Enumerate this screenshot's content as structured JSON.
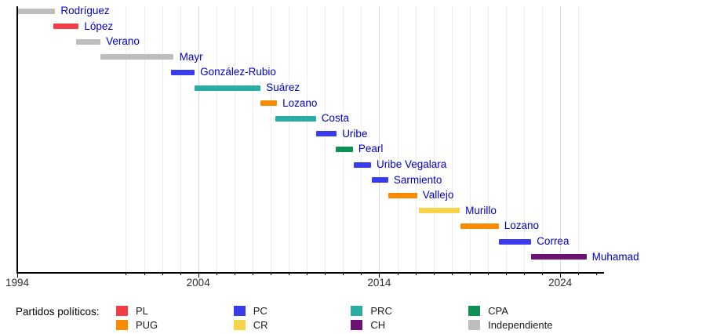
{
  "chart_data": {
    "type": "gantt",
    "title": "",
    "xlabel": "",
    "ylabel": "",
    "x_axis": {
      "start": 1994,
      "end": 2026.6,
      "labeled_ticks": [
        1994,
        2004,
        2014,
        2024
      ],
      "minor_tick_start": 2000,
      "minor_tick_end": 2026,
      "gridline_start": 2000,
      "gridline_end": 2025,
      "grid": "vertical yearly, light gray, decades darker"
    },
    "bars": [
      {
        "name": "Rodríguez",
        "party": "Independiente",
        "start": 1994.0,
        "end": 1996.1
      },
      {
        "name": "López",
        "party": "PL",
        "start": 1996.0,
        "end": 1997.4
      },
      {
        "name": "Verano",
        "party": "Independiente",
        "start": 1997.25,
        "end": 1998.6
      },
      {
        "name": "Mayr",
        "party": "Independiente",
        "start": 1998.6,
        "end": 2002.65
      },
      {
        "name": "González-Rubio",
        "party": "PC",
        "start": 2002.5,
        "end": 2003.8
      },
      {
        "name": "Suárez",
        "party": "PRC",
        "start": 2003.8,
        "end": 2007.45
      },
      {
        "name": "Lozano",
        "party": "PUG",
        "start": 2007.45,
        "end": 2008.35
      },
      {
        "name": "Costa",
        "party": "PRC",
        "start": 2008.25,
        "end": 2010.5
      },
      {
        "name": "Uribe",
        "party": "PC",
        "start": 2010.5,
        "end": 2011.65
      },
      {
        "name": "Pearl",
        "party": "CPA",
        "start": 2011.6,
        "end": 2012.55
      },
      {
        "name": "Uribe Vegalara",
        "party": "PC",
        "start": 2012.6,
        "end": 2013.55
      },
      {
        "name": "Sarmiento",
        "party": "PC",
        "start": 2013.6,
        "end": 2014.5
      },
      {
        "name": "Vallejo",
        "party": "PUG",
        "start": 2014.5,
        "end": 2016.1
      },
      {
        "name": "Murillo",
        "party": "CR",
        "start": 2016.2,
        "end": 2018.45
      },
      {
        "name": "Lozano",
        "party": "PUG",
        "start": 2018.5,
        "end": 2020.6
      },
      {
        "name": "Correa",
        "party": "PC",
        "start": 2020.6,
        "end": 2022.4
      },
      {
        "name": "Muhamad",
        "party": "CH",
        "start": 2022.4,
        "end": 2025.45
      }
    ],
    "party_colors": {
      "PL": "#f33e48",
      "PUG": "#f78c00",
      "PC": "#3a3bea",
      "CR": "#f6d44a",
      "PRC": "#29aca4",
      "CH": "#6d1173",
      "CPA": "#0d9152",
      "Independiente": "#bdbdbd"
    },
    "bar_label_color": "#0000c8"
  },
  "legend": {
    "title": "Partidos políticos:",
    "items": [
      {
        "label": "PL",
        "color": "#f33e48"
      },
      {
        "label": "PUG",
        "color": "#f78c00"
      },
      {
        "label": "PC",
        "color": "#3a3bea"
      },
      {
        "label": "CR",
        "color": "#f6d44a"
      },
      {
        "label": "PRC",
        "color": "#29aca4"
      },
      {
        "label": "CH",
        "color": "#6d1173"
      },
      {
        "label": "CPA",
        "color": "#0d9152"
      },
      {
        "label": "Independiente",
        "color": "#bdbdbd"
      }
    ]
  }
}
